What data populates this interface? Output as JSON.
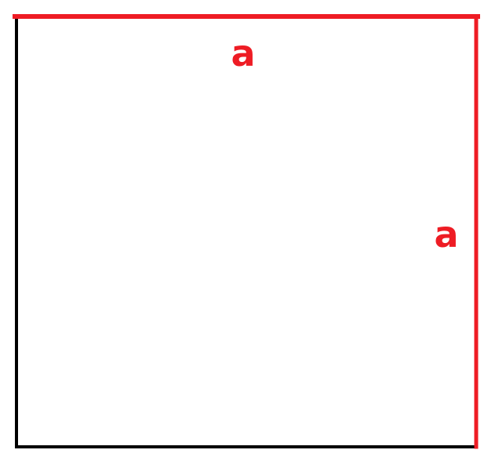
{
  "diagram": {
    "shape": "square",
    "labels": {
      "top_side": "a",
      "right_side": "a"
    },
    "colors": {
      "highlight": "#ee1c24",
      "outline": "#000000",
      "background": "#ffffff"
    }
  }
}
